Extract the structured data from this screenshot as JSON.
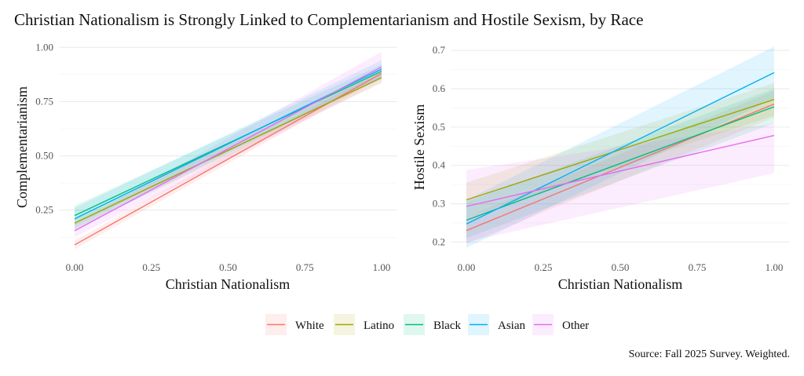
{
  "title": "Christian Nationalism is Strongly Linked to Complementarianism and Hostile Sexism, by Race",
  "source": "Source: Fall 2025 Survey. Weighted.",
  "legend": [
    {
      "name": "White",
      "color": "#F8766D"
    },
    {
      "name": "Latino",
      "color": "#A3A500"
    },
    {
      "name": "Black",
      "color": "#00BF7D"
    },
    {
      "name": "Asian",
      "color": "#00B0F6"
    },
    {
      "name": "Other",
      "color": "#E76BF3"
    }
  ],
  "chart_data": [
    {
      "type": "line",
      "xlabel": "Christian Nationalism",
      "ylabel": "Complementarianism",
      "xlim": [
        -0.05,
        1.05
      ],
      "ylim": [
        0.05,
        1.03
      ],
      "xticks": [
        "0.00",
        "0.25",
        "0.50",
        "0.75",
        "1.00"
      ],
      "xtick_values": [
        0,
        0.25,
        0.5,
        0.75,
        1
      ],
      "yticks": [
        "0.25",
        "0.50",
        "0.75",
        "1.00"
      ],
      "ytick_values": [
        0.25,
        0.5,
        0.75,
        1.0
      ],
      "grid": true,
      "x": [
        0,
        1
      ],
      "series": [
        {
          "name": "White",
          "values": [
            0.09,
            0.88
          ],
          "lower": [
            0.07,
            0.86
          ],
          "upper": [
            0.11,
            0.9
          ]
        },
        {
          "name": "Latino",
          "values": [
            0.19,
            0.86
          ],
          "lower": [
            0.165,
            0.835
          ],
          "upper": [
            0.215,
            0.885
          ]
        },
        {
          "name": "Black",
          "values": [
            0.225,
            0.89
          ],
          "lower": [
            0.18,
            0.86
          ],
          "upper": [
            0.27,
            0.92
          ]
        },
        {
          "name": "Asian",
          "values": [
            0.21,
            0.9
          ],
          "lower": [
            0.16,
            0.86
          ],
          "upper": [
            0.26,
            0.94
          ]
        },
        {
          "name": "Other",
          "values": [
            0.155,
            0.91
          ],
          "lower": [
            0.125,
            0.84
          ],
          "upper": [
            0.185,
            0.98
          ]
        }
      ]
    },
    {
      "type": "line",
      "xlabel": "Christian Nationalism",
      "ylabel": "Hostile Sexism",
      "xlim": [
        -0.05,
        1.05
      ],
      "ylim": [
        0.17,
        0.725
      ],
      "xticks": [
        "0.00",
        "0.25",
        "0.50",
        "0.75",
        "1.00"
      ],
      "xtick_values": [
        0,
        0.25,
        0.5,
        0.75,
        1
      ],
      "yticks": [
        "0.2",
        "0.3",
        "0.4",
        "0.5",
        "0.6",
        "0.7"
      ],
      "ytick_values": [
        0.2,
        0.3,
        0.4,
        0.5,
        0.6,
        0.7
      ],
      "grid": true,
      "x": [
        0,
        1
      ],
      "series": [
        {
          "name": "White",
          "values": [
            0.23,
            0.56
          ],
          "lower": [
            0.195,
            0.525
          ],
          "upper": [
            0.265,
            0.595
          ]
        },
        {
          "name": "Latino",
          "values": [
            0.31,
            0.572
          ],
          "lower": [
            0.265,
            0.53
          ],
          "upper": [
            0.355,
            0.615
          ]
        },
        {
          "name": "Black",
          "values": [
            0.257,
            0.553
          ],
          "lower": [
            0.21,
            0.51
          ],
          "upper": [
            0.305,
            0.6
          ]
        },
        {
          "name": "Asian",
          "values": [
            0.247,
            0.642
          ],
          "lower": [
            0.185,
            0.575
          ],
          "upper": [
            0.31,
            0.71
          ]
        },
        {
          "name": "Other",
          "values": [
            0.293,
            0.478
          ],
          "lower": [
            0.2,
            0.38
          ],
          "upper": [
            0.388,
            0.51
          ]
        }
      ]
    }
  ]
}
